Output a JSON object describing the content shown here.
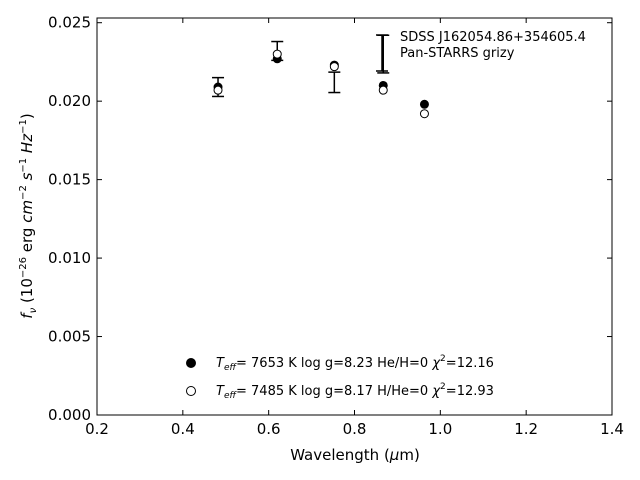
{
  "chart_data": {
    "type": "scatter",
    "xlabel": "Wavelength (μm)",
    "ylabel": "f_ν (10^-26 erg cm^-2 s^-1 Hz^-1)",
    "xlim": [
      0.2,
      1.4
    ],
    "ylim": [
      0.0,
      0.0253
    ],
    "xticks": [
      0.2,
      0.4,
      0.6,
      0.8,
      1.0,
      1.2,
      1.4
    ],
    "xtick_labels": [
      "0.2",
      "0.4",
      "0.6",
      "0.8",
      "1.0",
      "1.2",
      "1.4"
    ],
    "yticks": [
      0.0,
      0.005,
      0.01,
      0.015,
      0.02,
      0.025
    ],
    "ytick_labels": [
      "0.000",
      "0.005",
      "0.010",
      "0.015",
      "0.020",
      "0.025"
    ],
    "grid": false,
    "object_label": "SDSS J162054.86+354605.4",
    "survey_label": "Pan-STARRS grizy",
    "observed": {
      "x": [
        0.482,
        0.62,
        0.753,
        0.867,
        0.963
      ],
      "y": [
        0.0209,
        0.0232,
        0.0212,
        0.023,
        null
      ],
      "err": [
        0.0006,
        0.0006,
        0.00065,
        0.0012,
        null
      ]
    },
    "series": [
      {
        "marker": "filled-circle",
        "x": [
          0.482,
          0.62,
          0.753,
          0.867,
          0.963
        ],
        "y": [
          0.0209,
          0.0227,
          0.0223,
          0.021,
          0.0198
        ],
        "legend": {
          "teff": "7653 K",
          "logg": "log g=8.23",
          "comp": "He/H=0",
          "chi2": "12.16"
        }
      },
      {
        "marker": "open-circle",
        "x": [
          0.482,
          0.62,
          0.753,
          0.867,
          0.963
        ],
        "y": [
          0.0207,
          0.023,
          0.0222,
          0.0207,
          0.0192
        ],
        "legend": {
          "teff": "7485 K",
          "logg": "log g=8.17",
          "comp": "H/He=0",
          "chi2": "12.93"
        }
      }
    ],
    "legend_placement": "lower-center"
  }
}
